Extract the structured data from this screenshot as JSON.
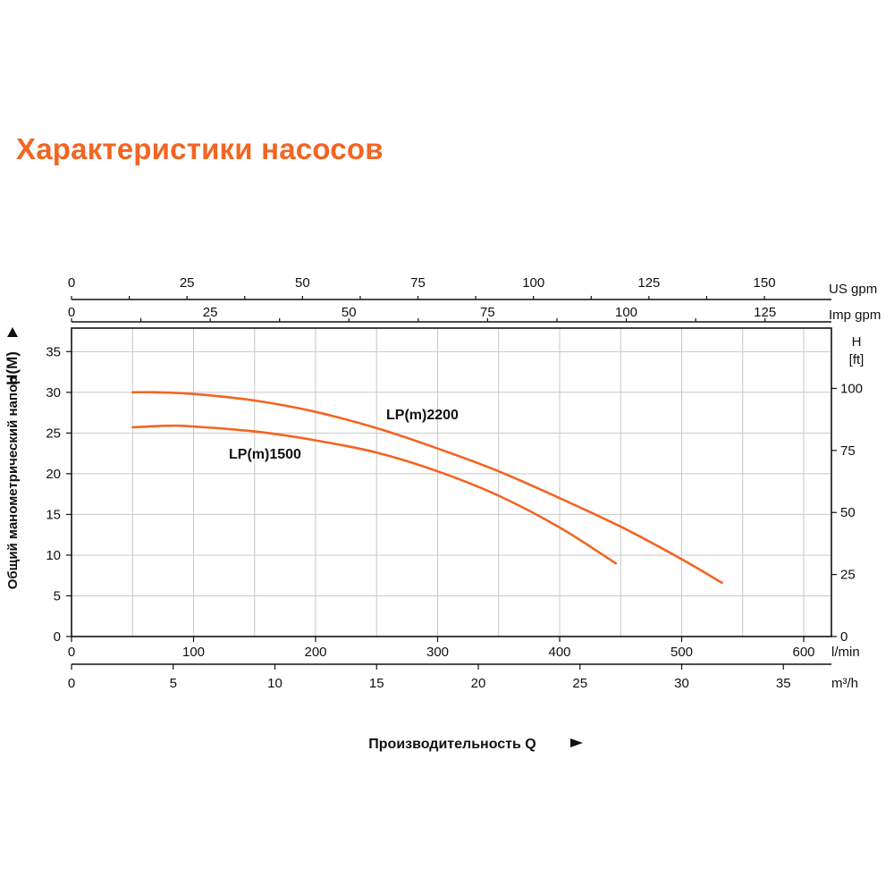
{
  "page": {
    "title": "Характеристики насосов"
  },
  "chart_data": {
    "type": "line",
    "title": "",
    "xlabel": "Производительность Q",
    "ylabel": "Общий манометрический напор",
    "ylabel_unit": "H(M)",
    "x_unit": "l/min",
    "xlim": [
      0,
      620
    ],
    "ylim": [
      0,
      38
    ],
    "grid": true,
    "y_ticks": [
      0,
      5,
      10,
      15,
      20,
      25,
      30,
      35
    ],
    "x_ticks": [
      0,
      100,
      200,
      300,
      400,
      500,
      600
    ],
    "secondary_axes": {
      "y_right": {
        "label": "H",
        "unit": "[ft]",
        "ticks": [
          "0",
          "25",
          "50",
          "75",
          "100"
        ]
      },
      "x_m3h": {
        "unit": "m³/h",
        "ticks": [
          "0",
          "5",
          "10",
          "15",
          "20",
          "25",
          "30",
          "35"
        ]
      },
      "x_us_gpm": {
        "unit": "US gpm",
        "ticks": [
          "0",
          "25",
          "50",
          "75",
          "100",
          "125",
          "150"
        ]
      },
      "x_imp_gpm": {
        "unit": "Imp gpm",
        "ticks": [
          "0",
          "25",
          "50",
          "75",
          "100",
          "125"
        ]
      }
    },
    "series": [
      {
        "name": "LP(m)2200",
        "color": "#f26522",
        "x": [
          50,
          70,
          100,
          150,
          200,
          250,
          300,
          350,
          400,
          450,
          500,
          533
        ],
        "y": [
          30.0,
          30.0,
          29.8,
          29.0,
          27.6,
          25.6,
          23.1,
          20.3,
          17.0,
          13.5,
          9.5,
          6.6
        ]
      },
      {
        "name": "LP(m)1500",
        "color": "#f26522",
        "x": [
          50,
          80,
          100,
          150,
          200,
          250,
          300,
          350,
          400,
          446
        ],
        "y": [
          25.7,
          25.9,
          25.8,
          25.2,
          24.1,
          22.6,
          20.3,
          17.3,
          13.4,
          9.0
        ]
      }
    ]
  }
}
